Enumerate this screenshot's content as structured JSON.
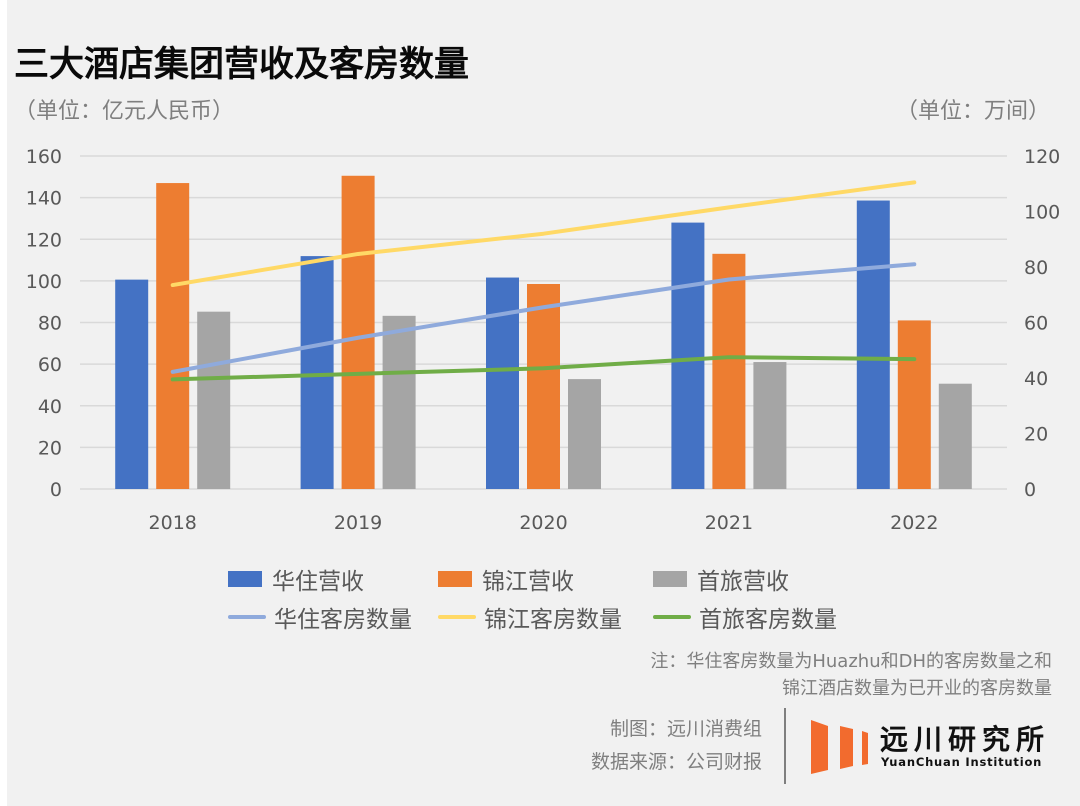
{
  "header": {
    "title": "三大酒店集团营收及客房数量",
    "unit_left": "（单位：亿元人民币）",
    "unit_right": "（单位：万间）"
  },
  "chart_data": {
    "type": "bar",
    "title": "三大酒店集团营收及客房数量",
    "categories": [
      "2018",
      "2019",
      "2020",
      "2021",
      "2022"
    ],
    "ylabel": "单位：亿元人民币",
    "y2label": "单位：万间",
    "ylim": [
      0,
      160
    ],
    "y2lim": [
      0,
      120
    ],
    "yticks": [
      "0",
      "20",
      "40",
      "60",
      "80",
      "100",
      "120",
      "140",
      "160"
    ],
    "y2ticks": [
      "0",
      "20",
      "40",
      "60",
      "80",
      "100",
      "120"
    ],
    "grid": true,
    "legend_position": "bottom",
    "bar_series": [
      {
        "name": "华住营收",
        "color": "#4472c4",
        "axis": "left",
        "values": [
          100.6,
          111.9,
          101.6,
          128.0,
          138.6
        ]
      },
      {
        "name": "锦江营收",
        "color": "#ed7d31",
        "axis": "left",
        "values": [
          147.0,
          150.5,
          98.5,
          113.0,
          81.0
        ]
      },
      {
        "name": "首旅营收",
        "color": "#a5a5a5",
        "axis": "left",
        "values": [
          85.2,
          83.2,
          52.8,
          61.0,
          50.6
        ]
      }
    ],
    "line_series": [
      {
        "name": "华住客房数量",
        "color": "#8faadc",
        "axis": "right",
        "values": [
          42.2,
          54.5,
          65.5,
          75.5,
          81.0
        ]
      },
      {
        "name": "锦江客房数量",
        "color": "#ffd966",
        "axis": "right",
        "values": [
          73.5,
          84.7,
          92.0,
          101.5,
          110.5
        ]
      },
      {
        "name": "首旅客房数量",
        "color": "#70ad47",
        "axis": "right",
        "values": [
          39.5,
          41.5,
          43.5,
          47.5,
          46.8
        ]
      }
    ]
  },
  "legend": {
    "bars": [
      "华住营收",
      "锦江营收",
      "首旅营收"
    ],
    "lines": [
      "华住客房数量",
      "锦江客房数量",
      "首旅客房数量"
    ]
  },
  "notes": {
    "line1": "注：华住客房数量为Huazhu和DH的客房数量之和",
    "line2": "锦江酒店数量为已开业的客房数量"
  },
  "credits": {
    "made_by": "制图：远川消费组",
    "source": "数据来源：公司财报"
  },
  "logo": {
    "name_cn": "远川研究所",
    "name_en": "YuanChuan Institution",
    "color": "#f26b2e"
  }
}
